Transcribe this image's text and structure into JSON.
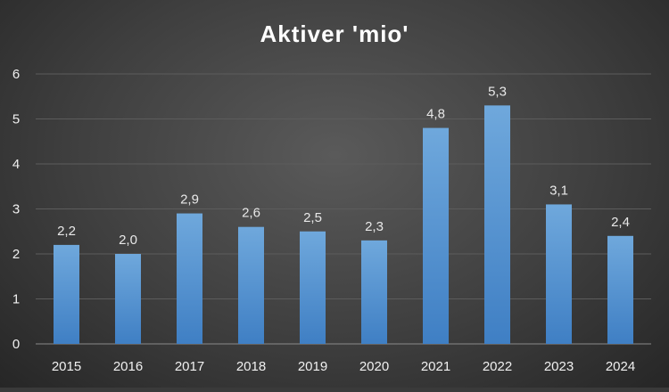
{
  "chart_data": {
    "type": "bar",
    "title": "Aktiver 'mio'",
    "xlabel": "",
    "ylabel": "",
    "categories": [
      "2015",
      "2016",
      "2017",
      "2018",
      "2019",
      "2020",
      "2021",
      "2022",
      "2023",
      "2024"
    ],
    "values": [
      2.2,
      2.0,
      2.9,
      2.6,
      2.5,
      2.3,
      4.8,
      5.3,
      3.1,
      2.4
    ],
    "data_labels": [
      "2,2",
      "2,0",
      "2,9",
      "2,6",
      "2,5",
      "2,3",
      "4,8",
      "5,3",
      "3,1",
      "2,4"
    ],
    "y_ticks": [
      "0",
      "1",
      "2",
      "3",
      "4",
      "5",
      "6"
    ],
    "ylim": [
      0,
      6
    ],
    "grid": true,
    "legend": "none",
    "colors": {
      "bar_top": "#6fa8dc",
      "bar_bottom": "#3f7fc4",
      "background": "#3f3f3f",
      "text": "#f0f0f0"
    }
  }
}
